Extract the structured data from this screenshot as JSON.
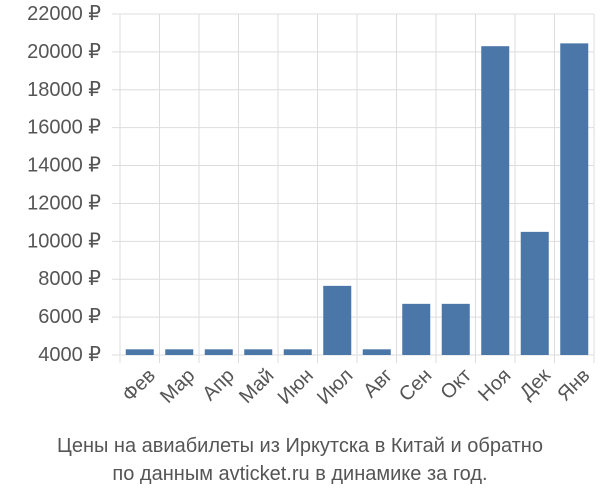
{
  "chart_data": {
    "type": "bar",
    "categories": [
      "Фев",
      "Мар",
      "Апр",
      "Май",
      "Июн",
      "Июл",
      "Авг",
      "Сен",
      "Окт",
      "Ноя",
      "Дек",
      "Янв"
    ],
    "values": [
      4300,
      4300,
      4300,
      4300,
      4300,
      7650,
      4300,
      6700,
      6700,
      20300,
      10500,
      20450
    ],
    "ylim": [
      4000,
      22000
    ],
    "yticks": [
      {
        "value": 4000,
        "label": "4000 ₽"
      },
      {
        "value": 6000,
        "label": "6000 ₽"
      },
      {
        "value": 8000,
        "label": "8000 ₽"
      },
      {
        "value": 10000,
        "label": "10000 ₽"
      },
      {
        "value": 12000,
        "label": "12000 ₽"
      },
      {
        "value": 14000,
        "label": "14000 ₽"
      },
      {
        "value": 16000,
        "label": "16000 ₽"
      },
      {
        "value": 18000,
        "label": "18000 ₽"
      },
      {
        "value": 20000,
        "label": "20000 ₽"
      },
      {
        "value": 22000,
        "label": "22000 ₽"
      }
    ],
    "grid": true,
    "bar_color": "#4a76a8",
    "grid_color": "#dddddd"
  },
  "caption": {
    "line1": "Цены на авиабилеты из Иркутска в Китай и обратно",
    "line2": "по данным avticket.ru в динамике за год."
  }
}
